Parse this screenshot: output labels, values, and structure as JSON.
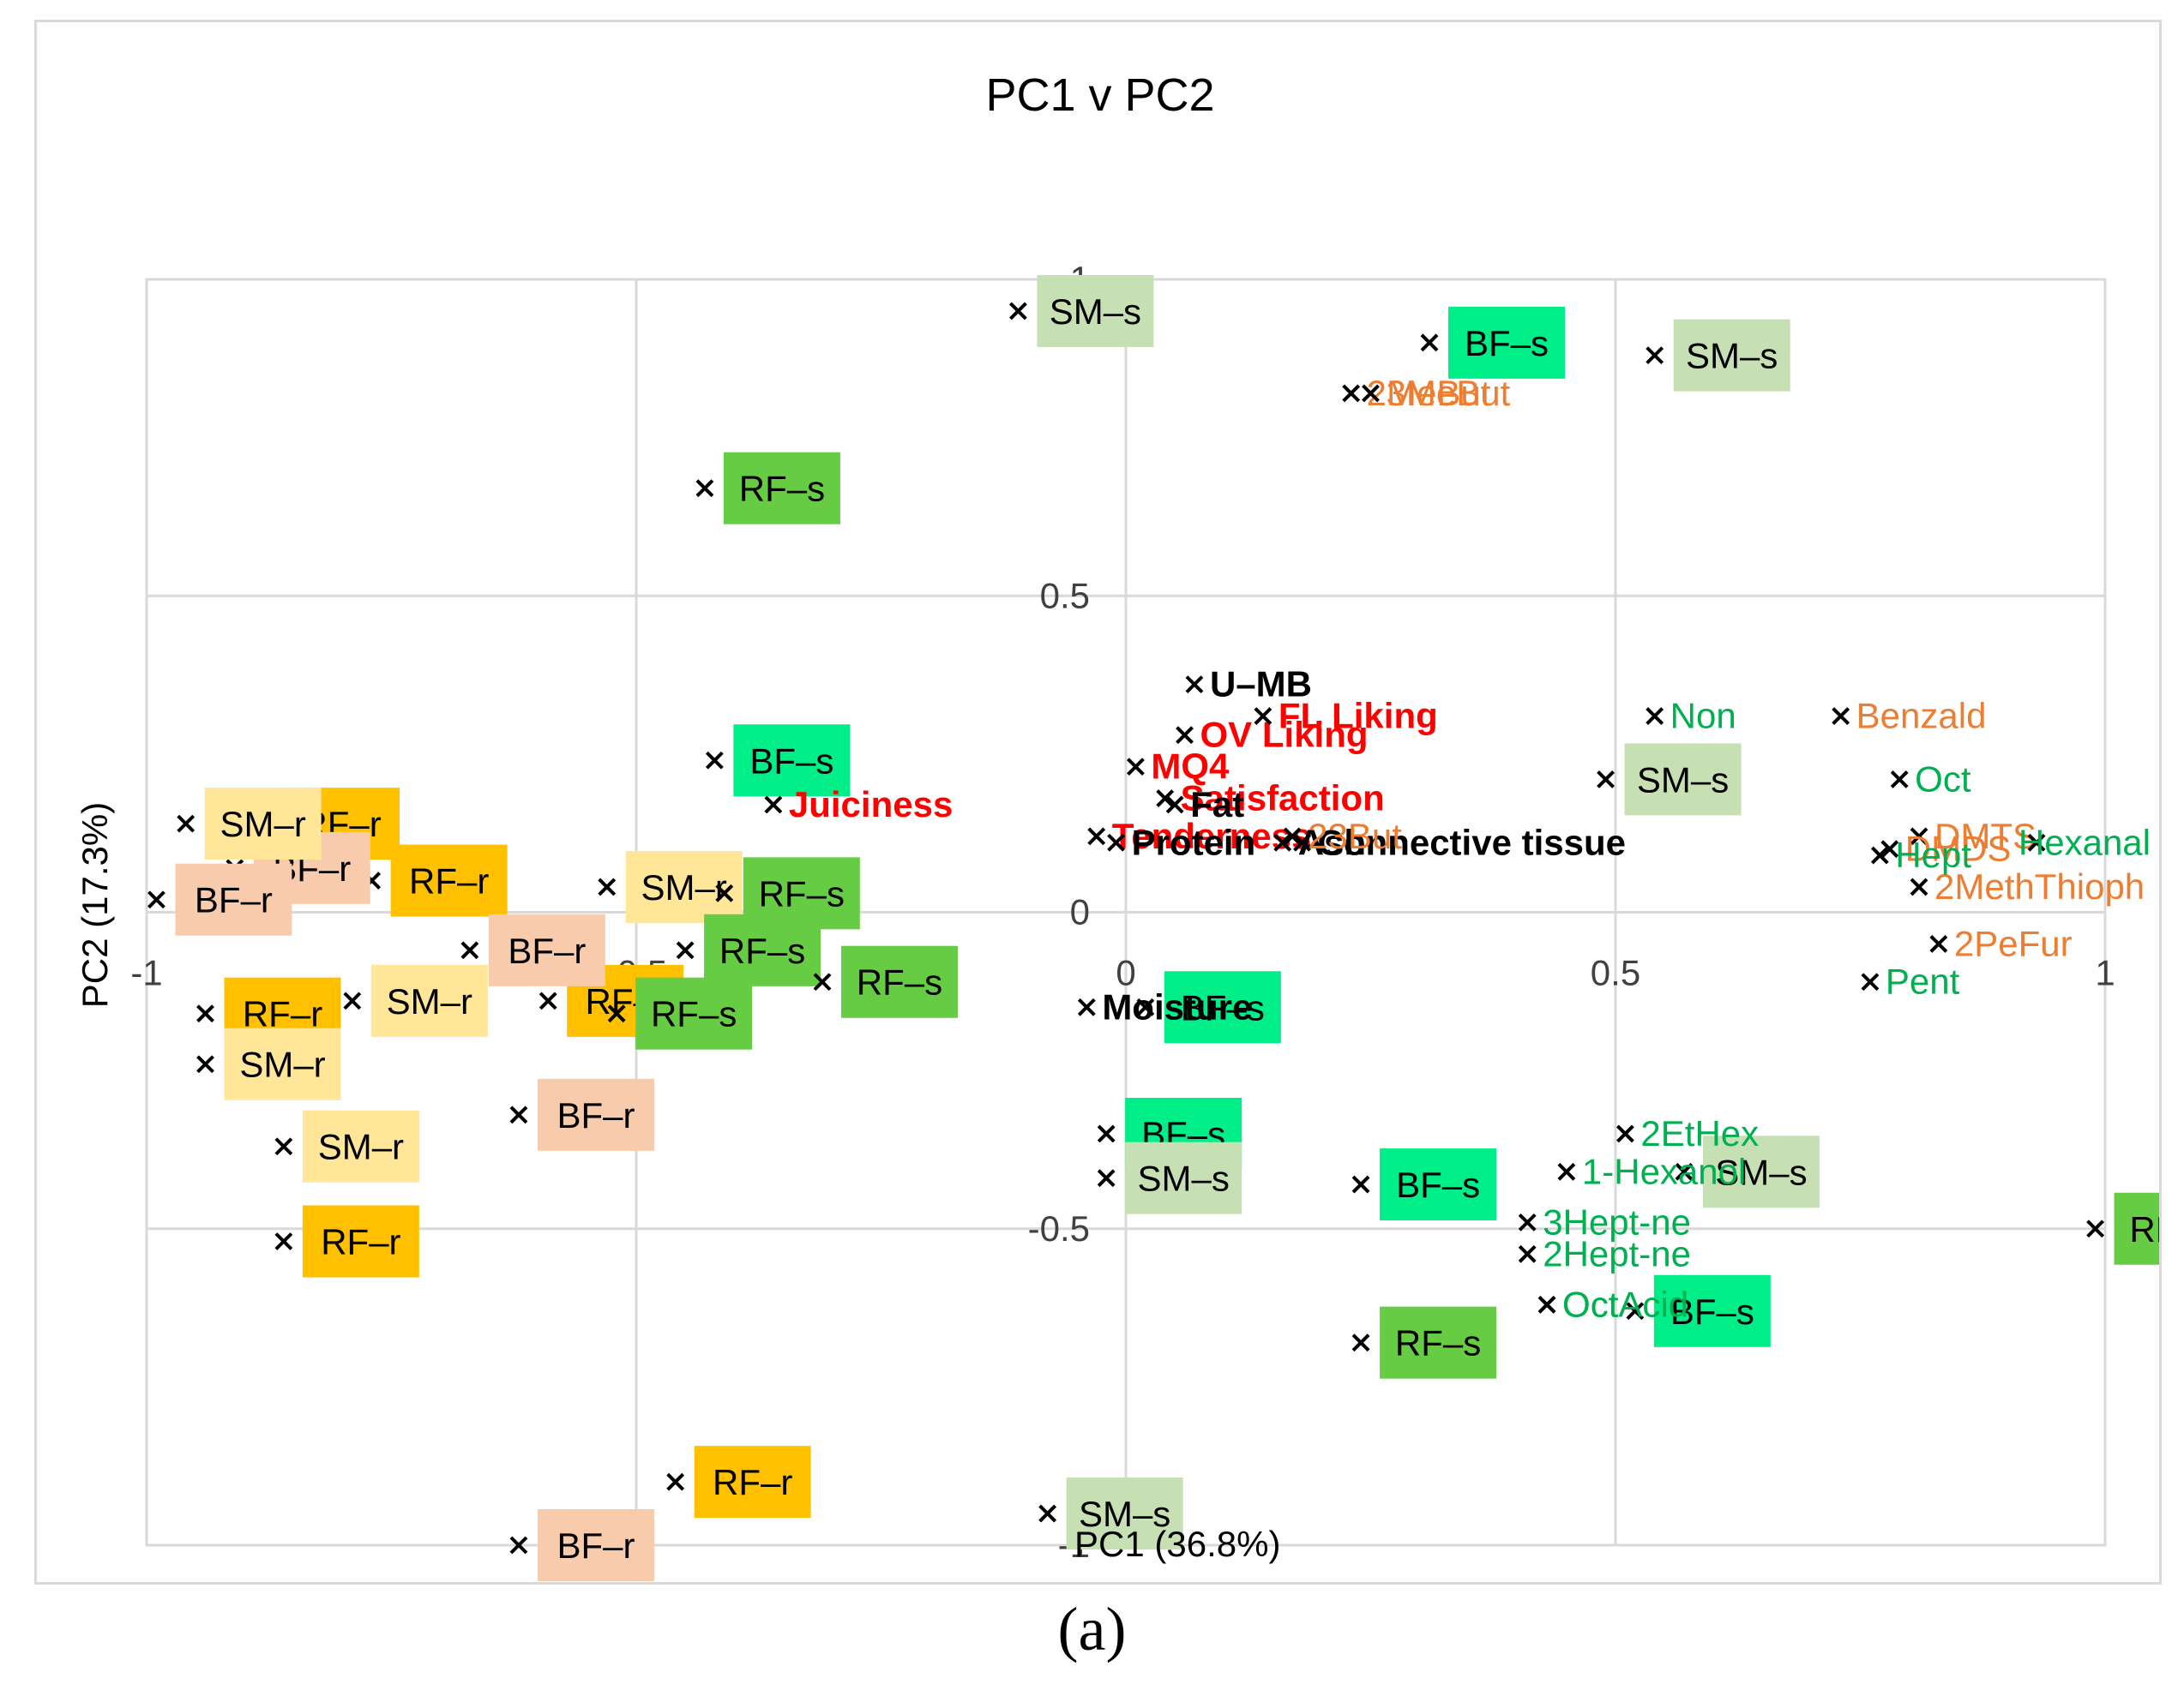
{
  "figure_caption": "(a)",
  "chart_data": {
    "type": "scatter",
    "title": "PC1 v PC2",
    "xlabel": "PC1 (36.8%)",
    "ylabel": "PC2 (17.3%)",
    "xlim": [
      -1,
      1
    ],
    "ylim": [
      -1,
      1
    ],
    "xticks": [
      -1,
      -0.5,
      0,
      0.5,
      1
    ],
    "yticks": [
      -1,
      -0.5,
      0,
      0.5,
      1
    ],
    "tick_labels": {
      "x": [
        "-1",
        "-0.5",
        "0",
        "0.5",
        "1"
      ],
      "y": [
        "-1",
        "-0.5",
        "0",
        "0.5",
        "1"
      ]
    },
    "grid": true,
    "colors": {
      "RF-r": "#ffc000",
      "BF-r": "#f8cbad",
      "SM-r": "#ffe699",
      "RF-s": "#66cc44",
      "BF-s": "#00ee88",
      "SM-s": "#c6e0b4",
      "sensory": "#ff0000",
      "composition": "#000000",
      "volatile_orange": "#ed7d31",
      "volatile_green": "#00b050",
      "marker": "#000000",
      "grid": "#d9d9d9"
    },
    "samples": [
      {
        "group": "RF-r",
        "label": "RF–r",
        "x": -0.88,
        "y": 0.14
      },
      {
        "group": "RF-r",
        "label": "RF–r",
        "x": -0.77,
        "y": 0.05
      },
      {
        "group": "RF-r",
        "label": "RF–r",
        "x": -0.94,
        "y": -0.16
      },
      {
        "group": "RF-r",
        "label": "RF–r",
        "x": -0.59,
        "y": -0.14
      },
      {
        "group": "RF-r",
        "label": "RF–r",
        "x": -0.86,
        "y": -0.52
      },
      {
        "group": "RF-r",
        "label": "RF–r",
        "x": -0.46,
        "y": -0.9
      },
      {
        "group": "BF-r",
        "label": "BF–r",
        "x": -0.91,
        "y": 0.07
      },
      {
        "group": "BF-r",
        "label": "BF–r",
        "x": -0.99,
        "y": 0.02
      },
      {
        "group": "BF-r",
        "label": "BF–r",
        "x": -0.67,
        "y": -0.06
      },
      {
        "group": "BF-r",
        "label": "BF–r",
        "x": -0.62,
        "y": -0.32
      },
      {
        "group": "BF-r",
        "label": "BF–r",
        "x": -0.62,
        "y": -1.0
      },
      {
        "group": "SM-r",
        "label": "SM–r",
        "x": -0.96,
        "y": 0.14
      },
      {
        "group": "SM-r",
        "label": "SM–r",
        "x": -0.53,
        "y": 0.04
      },
      {
        "group": "SM-r",
        "label": "SM–r",
        "x": -0.79,
        "y": -0.14
      },
      {
        "group": "SM-r",
        "label": "SM–r",
        "x": -0.94,
        "y": -0.24
      },
      {
        "group": "SM-r",
        "label": "SM–r",
        "x": -0.86,
        "y": -0.37
      },
      {
        "group": "RF-s",
        "label": "RF–s",
        "x": -0.43,
        "y": 0.67
      },
      {
        "group": "RF-s",
        "label": "RF–s",
        "x": -0.41,
        "y": 0.03
      },
      {
        "group": "RF-s",
        "label": "RF–s",
        "x": -0.45,
        "y": -0.06
      },
      {
        "group": "RF-s",
        "label": "RF–s",
        "x": -0.31,
        "y": -0.11
      },
      {
        "group": "RF-s",
        "label": "RF–s",
        "x": -0.52,
        "y": -0.16
      },
      {
        "group": "RF-s",
        "label": "RF–s",
        "x": 0.24,
        "y": -0.68
      },
      {
        "group": "RF-s",
        "label": "RF–s",
        "x": 0.99,
        "y": -0.5
      },
      {
        "group": "BF-s",
        "label": "BF–s",
        "x": 0.31,
        "y": 0.9
      },
      {
        "group": "BF-s",
        "label": "BF–s",
        "x": -0.42,
        "y": 0.24
      },
      {
        "group": "BF-s",
        "label": "BF–s",
        "x": 0.02,
        "y": -0.15
      },
      {
        "group": "BF-s",
        "label": "BF–s",
        "x": -0.02,
        "y": -0.35
      },
      {
        "group": "BF-s",
        "label": "BF–s",
        "x": 0.24,
        "y": -0.43
      },
      {
        "group": "BF-s",
        "label": "BF–s",
        "x": 0.52,
        "y": -0.63
      },
      {
        "group": "SM-s",
        "label": "SM–s",
        "x": -0.11,
        "y": 0.95
      },
      {
        "group": "SM-s",
        "label": "SM–s",
        "x": 0.54,
        "y": 0.88
      },
      {
        "group": "SM-s",
        "label": "SM–s",
        "x": 0.49,
        "y": 0.21
      },
      {
        "group": "SM-s",
        "label": "SM–s",
        "x": 0.57,
        "y": -0.41
      },
      {
        "group": "SM-s",
        "label": "SM–s",
        "x": -0.02,
        "y": -0.42
      },
      {
        "group": "SM-s",
        "label": "SM–s",
        "x": -0.08,
        "y": -0.95
      }
    ],
    "variables": [
      {
        "label": "Juiciness",
        "category": "sensory",
        "x": -0.36,
        "y": 0.17
      },
      {
        "label": "OV Liking",
        "category": "sensory",
        "x": 0.06,
        "y": 0.28
      },
      {
        "label": "FL Liking",
        "category": "sensory",
        "x": 0.14,
        "y": 0.31
      },
      {
        "label": "MQ4",
        "category": "sensory",
        "x": 0.01,
        "y": 0.23
      },
      {
        "label": "Satisfaction",
        "category": "sensory",
        "x": 0.04,
        "y": 0.18
      },
      {
        "label": "Tenderness",
        "category": "sensory",
        "x": -0.03,
        "y": 0.12
      },
      {
        "label": "U–MB",
        "category": "composition",
        "x": 0.07,
        "y": 0.36
      },
      {
        "label": "Fat",
        "category": "composition",
        "x": 0.05,
        "y": 0.17
      },
      {
        "label": "Ash",
        "category": "composition",
        "x": 0.16,
        "y": 0.11
      },
      {
        "label": "Connective tissue",
        "category": "composition",
        "x": 0.18,
        "y": 0.11
      },
      {
        "label": "Protein",
        "category": "composition",
        "x": -0.01,
        "y": 0.11
      },
      {
        "label": "Moisture",
        "category": "composition",
        "x": -0.04,
        "y": -0.15
      },
      {
        "label": "2MeBut",
        "category": "volatile_orange",
        "x": 0.23,
        "y": 0.82
      },
      {
        "label": "3MeBut",
        "category": "volatile_orange",
        "x": 0.25,
        "y": 0.82
      },
      {
        "label": "23But",
        "category": "volatile_orange",
        "x": 0.17,
        "y": 0.12
      },
      {
        "label": "Benzald",
        "category": "volatile_orange",
        "x": 0.73,
        "y": 0.31
      },
      {
        "label": "DMTS",
        "category": "volatile_orange",
        "x": 0.81,
        "y": 0.12
      },
      {
        "label": "DMDS",
        "category": "volatile_orange",
        "x": 0.78,
        "y": 0.1
      },
      {
        "label": "2MethThioph",
        "category": "volatile_orange",
        "x": 0.81,
        "y": 0.04
      },
      {
        "label": "2PeFur",
        "category": "volatile_orange",
        "x": 0.83,
        "y": -0.05
      },
      {
        "label": "Non",
        "category": "volatile_green",
        "x": 0.54,
        "y": 0.31
      },
      {
        "label": "Oct",
        "category": "volatile_green",
        "x": 0.79,
        "y": 0.21
      },
      {
        "label": "Hexanal",
        "category": "volatile_green",
        "x": 0.93,
        "y": 0.11
      },
      {
        "label": "Hept",
        "category": "volatile_green",
        "x": 0.77,
        "y": 0.09
      },
      {
        "label": "Pent",
        "category": "volatile_green",
        "x": 0.76,
        "y": -0.11
      },
      {
        "label": "2EtHex",
        "category": "volatile_green",
        "x": 0.51,
        "y": -0.35
      },
      {
        "label": "1-Hexanol",
        "category": "volatile_green",
        "x": 0.45,
        "y": -0.41
      },
      {
        "label": "3Hept-ne",
        "category": "volatile_green",
        "x": 0.41,
        "y": -0.49
      },
      {
        "label": "2Hept-ne",
        "category": "volatile_green",
        "x": 0.41,
        "y": -0.54
      },
      {
        "label": "OctAcid",
        "category": "volatile_green",
        "x": 0.43,
        "y": -0.62
      },
      {
        "label": "Oct",
        "category": "volatile_green",
        "x": 0.43,
        "y": -0.62
      }
    ]
  }
}
